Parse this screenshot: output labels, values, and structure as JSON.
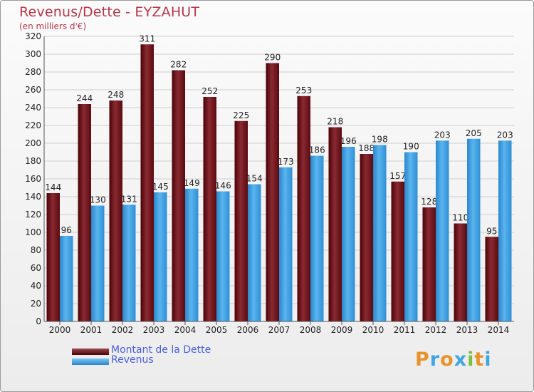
{
  "title": "Revenus/Dette - EYZAHUT",
  "subtitle": "(en milliers d'€)",
  "colors": {
    "dette": "#6b0f16",
    "revenus": "#3d9de0"
  },
  "legend": {
    "dette": "Montant de la Dette",
    "revenus": "Revenus"
  },
  "logo": {
    "text": "Proxiti",
    "letters": [
      "P",
      "r",
      "o",
      "x",
      "i",
      "t",
      "i"
    ],
    "colors": [
      "#e8932a",
      "#3fa6df",
      "#e8932a",
      "#3fa6df",
      "#7fbf3f",
      "#e8932a",
      "#3fa6df"
    ]
  },
  "chart_data": {
    "type": "bar",
    "title": "Revenus/Dette - EYZAHUT",
    "subtitle": "(en milliers d'€)",
    "categories": [
      "2000",
      "2001",
      "2002",
      "2003",
      "2004",
      "2005",
      "2006",
      "2007",
      "2008",
      "2009",
      "2010",
      "2011",
      "2012",
      "2013",
      "2014"
    ],
    "series": [
      {
        "name": "Montant de la Dette",
        "values": [
          144,
          244,
          248,
          311,
          282,
          252,
          225,
          290,
          253,
          218,
          188,
          157,
          128,
          110,
          95
        ]
      },
      {
        "name": "Revenus",
        "values": [
          96,
          130,
          131,
          145,
          149,
          146,
          154,
          173,
          186,
          196,
          198,
          190,
          203,
          205,
          203
        ]
      }
    ],
    "ylim": [
      0,
      320
    ],
    "yticks": [
      0,
      20,
      40,
      60,
      80,
      100,
      120,
      140,
      160,
      180,
      200,
      220,
      240,
      260,
      280,
      300,
      320
    ],
    "grid": true,
    "legend_position": "bottom-left"
  }
}
